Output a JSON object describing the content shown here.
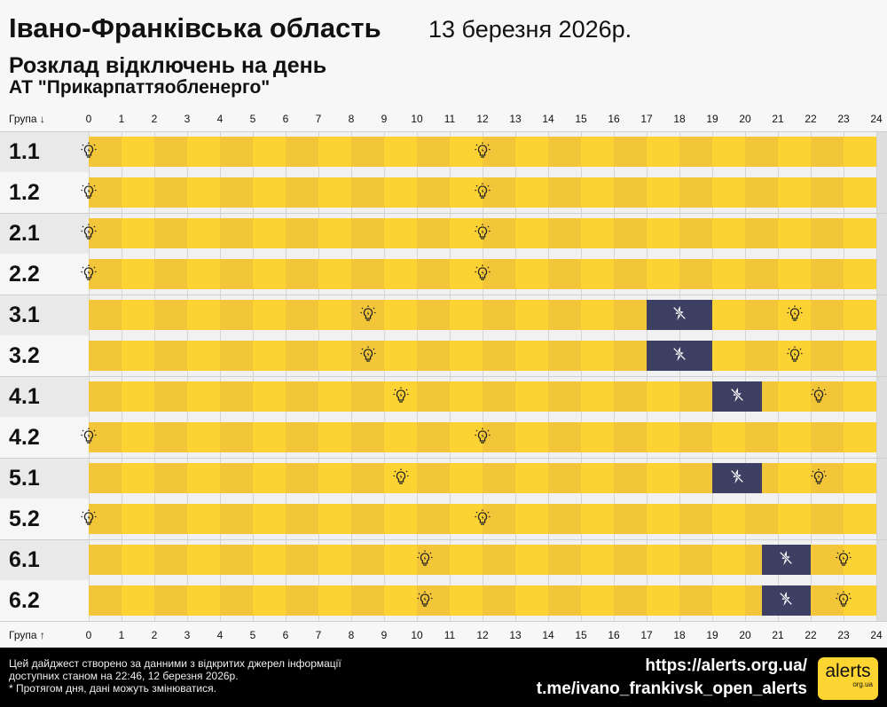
{
  "header": {
    "region": "Івано-Франківська область",
    "date": "13 березня 2026р.",
    "subtitle": "Розклад відключень на день",
    "company": "АТ \"Прикарпаттяобленерго\""
  },
  "axis": {
    "group_label_top": "Група ↓",
    "group_label_bottom": "Група ↑",
    "hours": [
      "0",
      "1",
      "2",
      "3",
      "4",
      "5",
      "6",
      "7",
      "8",
      "9",
      "10",
      "11",
      "12",
      "13",
      "14",
      "15",
      "16",
      "17",
      "18",
      "19",
      "20",
      "21",
      "22",
      "23",
      "24"
    ]
  },
  "colors": {
    "power_on_dark": "#f3c63a",
    "power_on_light": "#fdd334",
    "outage": "#3d3f63"
  },
  "rows": [
    {
      "group": "1.1",
      "outages": [],
      "bulbs": [
        0,
        12
      ]
    },
    {
      "group": "1.2",
      "outages": [],
      "bulbs": [
        0,
        12
      ]
    },
    {
      "group": "2.1",
      "outages": [],
      "bulbs": [
        0,
        12
      ]
    },
    {
      "group": "2.2",
      "outages": [],
      "bulbs": [
        0,
        12
      ]
    },
    {
      "group": "3.1",
      "outages": [
        [
          17,
          19
        ]
      ],
      "bulbs": [
        8.5,
        21.5
      ]
    },
    {
      "group": "3.2",
      "outages": [
        [
          17,
          19
        ]
      ],
      "bulbs": [
        8.5,
        21.5
      ]
    },
    {
      "group": "4.1",
      "outages": [
        [
          19,
          20.5
        ]
      ],
      "bulbs": [
        9.5,
        22.25
      ]
    },
    {
      "group": "4.2",
      "outages": [],
      "bulbs": [
        0,
        12
      ]
    },
    {
      "group": "5.1",
      "outages": [
        [
          19,
          20.5
        ]
      ],
      "bulbs": [
        9.5,
        22.25
      ]
    },
    {
      "group": "5.2",
      "outages": [],
      "bulbs": [
        0,
        12
      ]
    },
    {
      "group": "6.1",
      "outages": [
        [
          20.5,
          22
        ]
      ],
      "bulbs": [
        10.25,
        23
      ]
    },
    {
      "group": "6.2",
      "outages": [
        [
          20.5,
          22
        ]
      ],
      "bulbs": [
        10.25,
        23
      ]
    }
  ],
  "icons": {
    "power_on": "lightbulb-icon",
    "outage": "power-off-lightning-icon"
  },
  "footer": {
    "line1": "Цей дайджест створено за данними з відкритих джерел інформації",
    "line2": "доступних станом на 22:46, 12 березня 2026р.",
    "line3": "* Протягом дня, дані можуть змінюватися.",
    "site": "https://alerts.org.ua/",
    "telegram": "t.me/ivano_frankivsk_open_alerts",
    "logo_main": "alerts",
    "logo_sub": "org.ua"
  }
}
